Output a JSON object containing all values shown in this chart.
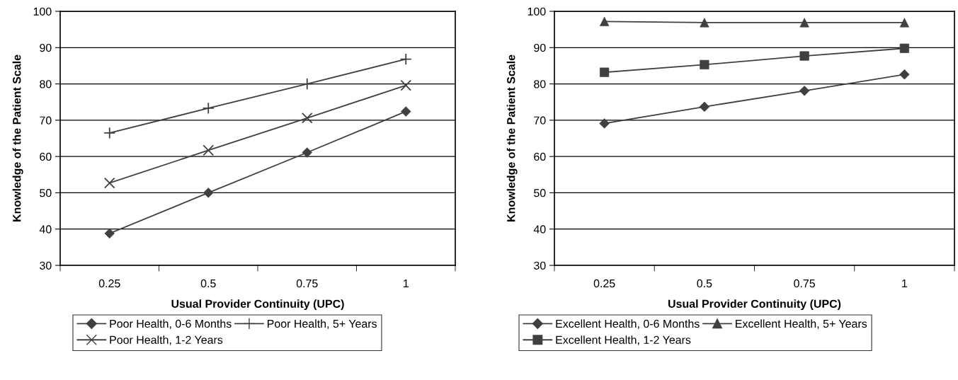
{
  "chart_data": [
    {
      "type": "line",
      "xlabel": "Usual Provider Continuity (UPC)",
      "ylabel": "Knowledge of the Patient Scale",
      "categories": [
        "0.25",
        "0.5",
        "0.75",
        "1"
      ],
      "ylim": [
        30,
        100
      ],
      "yticks": [
        30,
        40,
        50,
        60,
        70,
        80,
        90,
        100
      ],
      "grid": "y",
      "legend": "bottom",
      "line_style": "solid",
      "series": [
        {
          "name": "Poor Health, 0-6 Months",
          "color": "#404040",
          "marker": "diamond",
          "values": [
            38.8,
            50,
            61.1,
            72.4
          ]
        },
        {
          "name": "Poor Health, 1-2 Years",
          "color": "#404040",
          "marker": "cross",
          "values": [
            52.7,
            61.7,
            70.6,
            79.6
          ]
        },
        {
          "name": "Poor Health, 5+ Years",
          "color": "#404040",
          "marker": "plus",
          "values": [
            66.5,
            73.3,
            80,
            86.8
          ]
        }
      ]
    },
    {
      "type": "line",
      "xlabel": "Usual Provider Continuity (UPC)",
      "ylabel": "Knowledge of the Patient Scale",
      "categories": [
        "0.25",
        "0.5",
        "0.75",
        "1"
      ],
      "ylim": [
        30,
        100
      ],
      "yticks": [
        30,
        40,
        50,
        60,
        70,
        80,
        90,
        100
      ],
      "grid": "y",
      "legend": "bottom",
      "line_style": "solid",
      "series": [
        {
          "name": "Excellent Health, 0-6 Months",
          "color": "#404040",
          "marker": "diamond",
          "values": [
            69.1,
            73.7,
            78.1,
            82.6
          ]
        },
        {
          "name": "Excellent Health, 1-2 Years",
          "color": "#404040",
          "marker": "square",
          "values": [
            83.2,
            85.3,
            87.7,
            89.8
          ]
        },
        {
          "name": "Excellent Health, 5+ Years",
          "color": "#404040",
          "marker": "triangle",
          "values": [
            97.2,
            96.9,
            96.9,
            96.9
          ]
        }
      ]
    }
  ]
}
